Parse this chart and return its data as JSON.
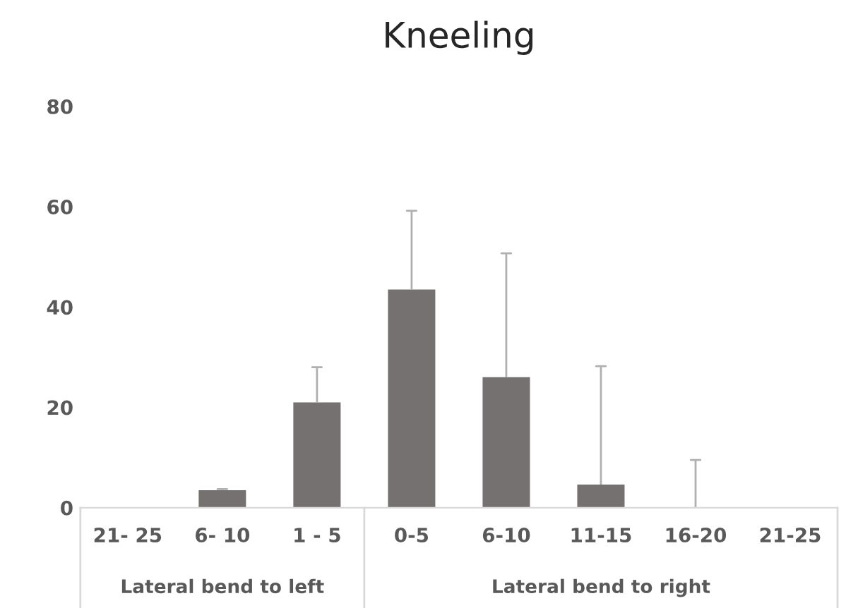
{
  "chart_data": {
    "type": "bar",
    "title": "Kneeling",
    "categories": [
      "21- 25",
      "6- 10",
      "1 - 5",
      "0-5",
      "6-10",
      "11-15",
      "16-20",
      "21-25"
    ],
    "values": [
      0,
      3.5,
      21,
      43.5,
      26,
      4.6,
      0,
      0
    ],
    "errors": [
      null,
      [
        3.5,
        3.7
      ],
      [
        21,
        28
      ],
      [
        43.5,
        59.2
      ],
      [
        26,
        50.7
      ],
      [
        4.6,
        28.2
      ],
      [
        0,
        9.5
      ],
      null
    ],
    "color": "#767171",
    "ylim": [
      0,
      80
    ],
    "yticks": [
      0,
      20,
      40,
      60,
      80
    ],
    "grid": false,
    "annotations": [
      "Lateral bend to left",
      "Lateral bend to right"
    ]
  }
}
